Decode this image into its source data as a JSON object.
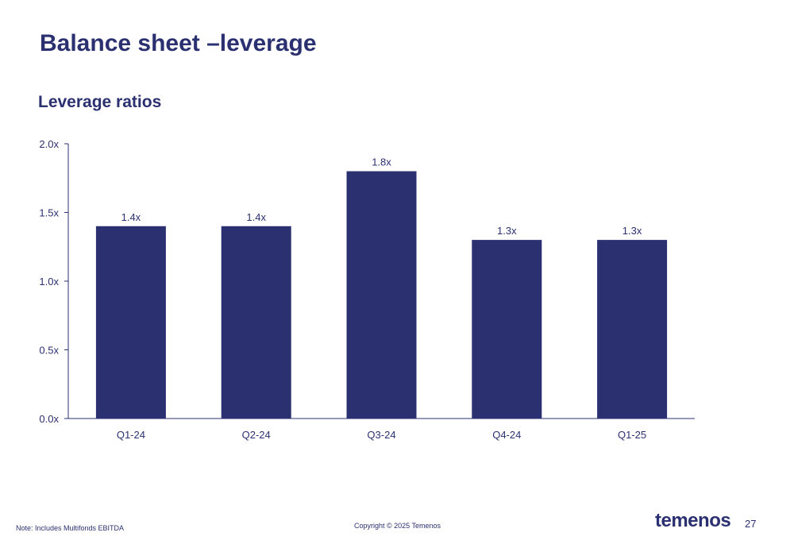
{
  "slide": {
    "title": "Balance sheet –leverage",
    "footnote": "Note: Includes Multifonds EBITDA",
    "copyright": "Copyright © 2025 Temenos",
    "logo": "temenos",
    "page_number": "27"
  },
  "colors": {
    "bar": "#2b3070",
    "text": "#2b3070",
    "axis": "#2b3070"
  },
  "chart_data": {
    "type": "bar",
    "title": "Leverage ratios",
    "xlabel": "",
    "ylabel": "",
    "categories": [
      "Q1-24",
      "Q2-24",
      "Q3-24",
      "Q4-24",
      "Q1-25"
    ],
    "values": [
      1.4,
      1.4,
      1.8,
      1.3,
      1.3
    ],
    "data_labels": [
      "1.4x",
      "1.4x",
      "1.8x",
      "1.3x",
      "1.3x"
    ],
    "ylim": [
      0,
      2.0
    ],
    "yticks": [
      0,
      0.5,
      1.0,
      1.5,
      2.0
    ],
    "ytick_labels": [
      "0.0x",
      "0.5x",
      "1.0x",
      "1.5x",
      "2.0x"
    ],
    "grid": false,
    "legend": "none"
  }
}
